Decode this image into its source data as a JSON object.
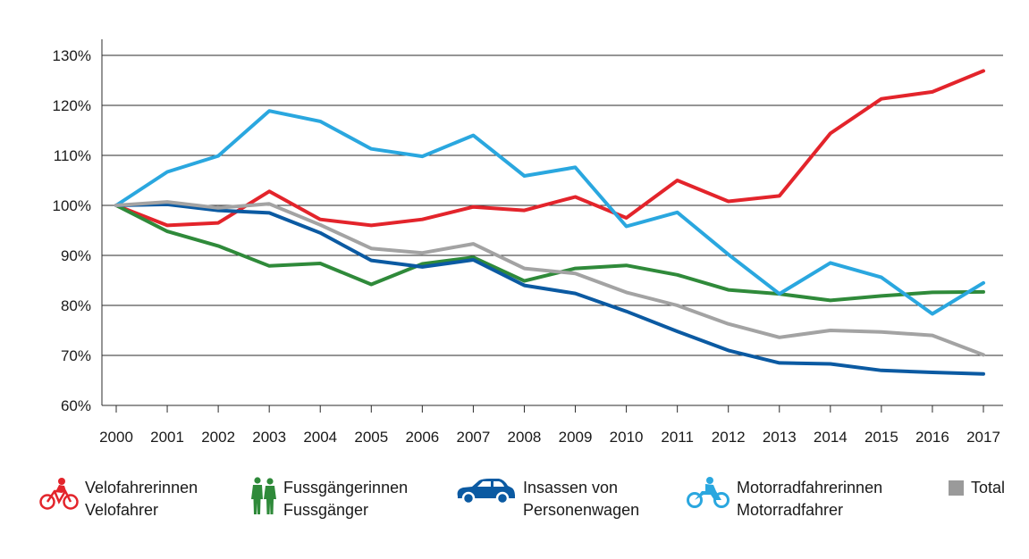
{
  "chart_data": {
    "type": "line",
    "title": "",
    "xlabel": "",
    "ylabel": "",
    "x": [
      "2000",
      "2001",
      "2002",
      "2003",
      "2004",
      "2005",
      "2006",
      "2007",
      "2008",
      "2009",
      "2010",
      "2011",
      "2012",
      "2013",
      "2014",
      "2015",
      "2016",
      "2017"
    ],
    "ylim": [
      60,
      130
    ],
    "yticks": [
      "60%",
      "70%",
      "80%",
      "90%",
      "100%",
      "110%",
      "120%",
      "130%"
    ],
    "ytick_values": [
      60,
      70,
      80,
      90,
      100,
      110,
      120,
      130
    ],
    "grid": "horizontal",
    "legend_position": "bottom",
    "series": [
      {
        "key": "velo",
        "color": "#e3242b",
        "values": [
          100,
          96,
          96.5,
          102.8,
          97.2,
          96,
          97.2,
          99.7,
          99,
          101.7,
          97.5,
          105,
          100.8,
          101.9,
          114.4,
          121.3,
          122.7,
          126.9
        ]
      },
      {
        "key": "fuss",
        "color": "#2f8a3a",
        "values": [
          100,
          94.8,
          91.9,
          87.9,
          88.4,
          84.2,
          88.3,
          89.6,
          84.9,
          87.4,
          88,
          86.1,
          83.1,
          82.3,
          81,
          81.9,
          82.6,
          82.7
        ]
      },
      {
        "key": "pkw",
        "color": "#0b5aa2",
        "values": [
          100,
          100.2,
          99,
          98.5,
          94.5,
          89,
          87.7,
          89.1,
          84,
          82.4,
          78.8,
          74.8,
          71,
          68.5,
          68.3,
          67,
          66.6,
          66.3
        ]
      },
      {
        "key": "moto",
        "color": "#2aa7df",
        "values": [
          100,
          106.7,
          109.9,
          118.9,
          116.8,
          111.3,
          109.8,
          114,
          105.9,
          107.6,
          95.8,
          98.6,
          90.2,
          82.3,
          88.5,
          85.6,
          78.3,
          84.5
        ]
      },
      {
        "key": "total",
        "color": "#a3a3a3",
        "values": [
          100,
          100.7,
          99.5,
          100.3,
          96.1,
          91.4,
          90.5,
          92.3,
          87.4,
          86.4,
          82.6,
          80,
          76.3,
          73.6,
          75,
          74.7,
          74,
          70.1
        ]
      }
    ]
  },
  "legend": {
    "velo": {
      "line1": "Velofahrerinnen",
      "line2": "Velofahrer",
      "icon": "cyclist-icon",
      "color": "#e3242b"
    },
    "fuss": {
      "line1": "Fussgängerinnen",
      "line2": "Fussgänger",
      "icon": "pedestrians-icon",
      "color": "#2f8a3a"
    },
    "pkw": {
      "line1": "Insassen von",
      "line2": "Personenwagen",
      "icon": "car-icon",
      "color": "#0b5aa2"
    },
    "moto": {
      "line1": "Motorradfahrerinnen",
      "line2": "Motorradfahrer",
      "icon": "motorcyclist-icon",
      "color": "#2aa7df"
    },
    "total": {
      "line1": "Total",
      "color": "#9a9a9a"
    }
  }
}
